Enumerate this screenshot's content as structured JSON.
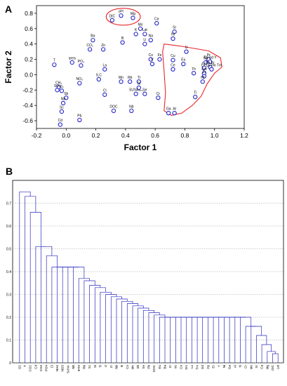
{
  "panel_labels": [
    "A",
    "B"
  ],
  "chart_data": [
    {
      "panel": "A",
      "type": "scatter",
      "title": "",
      "xlabel": "Factor 1",
      "ylabel": "Factor 2",
      "xlim": [
        -0.2,
        1.2
      ],
      "ylim": [
        -0.7,
        0.9
      ],
      "xticks": [
        "-0.2",
        "0.0",
        "0.2",
        "0.4",
        "0.6",
        "0.8",
        "1.0",
        "1.2"
      ],
      "yticks": [
        "-0.6",
        "-0.4",
        "-0.2",
        "0.0",
        "0.2",
        "0.4",
        "0.6",
        "0.8"
      ],
      "point_color": "#2323c8",
      "highlight_color": "#e8262c",
      "grid": false,
      "points": [
        {
          "label": "pH",
          "x": 0.37,
          "y": 0.77
        },
        {
          "label": "Mg",
          "x": 0.45,
          "y": 0.74
        },
        {
          "label": "DIC",
          "x": 0.31,
          "y": 0.71
        },
        {
          "label": "Ca",
          "x": 0.61,
          "y": 0.67
        },
        {
          "label": "Mo",
          "x": 0.5,
          "y": 0.6
        },
        {
          "label": "Sr",
          "x": 0.73,
          "y": 0.56
        },
        {
          "label": "K",
          "x": 0.47,
          "y": 0.53
        },
        {
          "label": "Lat",
          "x": 0.53,
          "y": 0.53
        },
        {
          "label": "Ba",
          "x": 0.18,
          "y": 0.45
        },
        {
          "label": "Na",
          "x": 0.57,
          "y": 0.45
        },
        {
          "label": "Ni",
          "x": 0.72,
          "y": 0.47
        },
        {
          "label": "B",
          "x": 0.38,
          "y": 0.42
        },
        {
          "label": "Li",
          "x": 0.53,
          "y": 0.4
        },
        {
          "label": "CO₂",
          "x": 0.16,
          "y": 0.33
        },
        {
          "label": "Zn",
          "x": 0.25,
          "y": 0.33
        },
        {
          "label": "U",
          "x": 0.81,
          "y": 0.3
        },
        {
          "label": "Co",
          "x": 0.57,
          "y": 0.2
        },
        {
          "label": "Fe",
          "x": 0.63,
          "y": 0.2
        },
        {
          "label": "Cu",
          "x": 0.72,
          "y": 0.19
        },
        {
          "label": "Pr",
          "x": 0.96,
          "y": 0.2
        },
        {
          "label": "T",
          "x": -0.08,
          "y": 0.13
        },
        {
          "label": "area",
          "x": 0.04,
          "y": 0.16
        },
        {
          "label": "PO₄",
          "x": 0.1,
          "y": 0.12
        },
        {
          "label": "V",
          "x": 0.58,
          "y": 0.14
        },
        {
          "label": "Eu",
          "x": 0.79,
          "y": 0.14
        },
        {
          "label": "Nd",
          "x": 0.94,
          "y": 0.16
        },
        {
          "label": "Tb Gd Y",
          "x": 0.97,
          "y": 0.17
        },
        {
          "label": "La",
          "x": 0.26,
          "y": 0.07
        },
        {
          "label": "Ce",
          "x": 0.72,
          "y": 0.07
        },
        {
          "label": "Lu",
          "x": 0.93,
          "y": 0.09
        },
        {
          "label": "Yb Er",
          "x": 0.97,
          "y": 0.1
        },
        {
          "label": "Lu Dy Ho Tm",
          "x": 0.98,
          "y": 0.07
        },
        {
          "label": "Th",
          "x": 0.86,
          "y": 0.02
        },
        {
          "label": "Sm",
          "x": 0.93,
          "y": 0.02
        },
        {
          "label": "S,C",
          "x": 0.22,
          "y": -0.06
        },
        {
          "label": "NO₃",
          "x": 0.09,
          "y": -0.11
        },
        {
          "label": "Mn",
          "x": 0.37,
          "y": -0.09
        },
        {
          "label": "Rb",
          "x": 0.43,
          "y": -0.09
        },
        {
          "label": "Ti",
          "x": 0.49,
          "y": -0.09
        },
        {
          "label": "Zr",
          "x": 0.93,
          "y": -0.02
        },
        {
          "label": "Si",
          "x": 0.49,
          "y": -0.17
        },
        {
          "label": "CH₄",
          "x": -0.05,
          "y": -0.16
        },
        {
          "label": "SO₄",
          "x": -0.06,
          "y": -0.2
        },
        {
          "label": "O₂",
          "x": -0.03,
          "y": -0.21
        },
        {
          "label": "Hf",
          "x": 0.92,
          "y": -0.09
        },
        {
          "label": "SUVA₂₅₄",
          "x": 0.47,
          "y": -0.25
        },
        {
          "label": "Se",
          "x": 0.53,
          "y": -0.25
        },
        {
          "label": "Sb",
          "x": 0.0,
          "y": -0.3
        },
        {
          "label": "Cl",
          "x": 0.26,
          "y": -0.26
        },
        {
          "label": "Cr",
          "x": 0.62,
          "y": -0.3
        },
        {
          "label": "Ti",
          "x": 0.87,
          "y": -0.29
        },
        {
          "label": "Nb",
          "x": -0.02,
          "y": -0.37
        },
        {
          "label": "DOC",
          "x": 0.32,
          "y": -0.47
        },
        {
          "label": "Nb",
          "x": 0.44,
          "y": -0.47
        },
        {
          "label": "Sc",
          "x": -0.03,
          "y": -0.48
        },
        {
          "label": "Ga",
          "x": 0.69,
          "y": -0.5
        },
        {
          "label": "Al",
          "x": 0.73,
          "y": -0.5
        },
        {
          "label": "Pb",
          "x": 0.09,
          "y": -0.59
        },
        {
          "label": "Cd",
          "x": -0.04,
          "y": -0.65
        }
      ]
    },
    {
      "panel": "B",
      "type": "dendrogram",
      "title": "",
      "ylim": [
        0,
        0.8
      ],
      "yticks": [
        "0",
        "0.1",
        "0.2",
        "0.3",
        "0.4",
        "0.5",
        "0.6",
        "0.7"
      ],
      "line_color": "#2b2bc0",
      "grid": true,
      "leaves": [
        "O2",
        "T",
        "CO2",
        "Cd",
        "CH4",
        "PO4",
        "Cl",
        "NH4",
        "NO3",
        "SUVA",
        "Nb",
        "area",
        "Rb",
        "Sc",
        "Si",
        "Ti",
        "U",
        "Zr",
        "Nb",
        "B",
        "Co",
        "Mn",
        "Sb",
        "Se",
        "Pb",
        "DOC",
        "Eu",
        "Ba",
        "Zr",
        "Th",
        "Ce",
        "Sm",
        "Lu",
        "Tm",
        "Gd",
        "Dy",
        "Er",
        "Y",
        "Ni",
        "Ga",
        "Al",
        "Ti",
        "Cr",
        "Mo",
        "Sr",
        "Ca",
        "Mg",
        "DIC",
        "Lat"
      ],
      "merge_heights": [
        0.75,
        0.73,
        0.66,
        0.1,
        0.51,
        0.47,
        0.42,
        0.31,
        0.39,
        0.35,
        0.42,
        0.37,
        0.36,
        0.34,
        0.33,
        0.31,
        0.3,
        0.29,
        0.28,
        0.27,
        0.26,
        0.25,
        0.24,
        0.23,
        0.22,
        0.21,
        0.2,
        0.19,
        0.18,
        0.06,
        0.05,
        0.04,
        0.03,
        0.02,
        0.02,
        0.01,
        0.01,
        0.01,
        0.01,
        0.13,
        0.11,
        0.2,
        0.05,
        0.16,
        0.12,
        0.08,
        0.05,
        0.04
      ]
    }
  ]
}
